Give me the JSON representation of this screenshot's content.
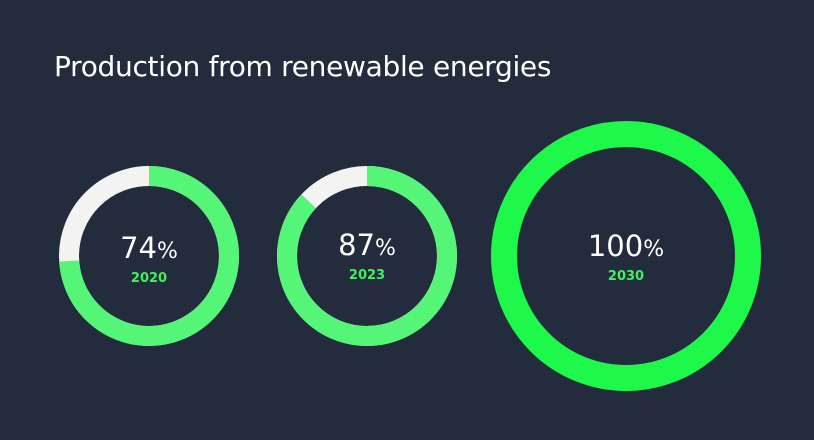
{
  "title": "Production from renewable energies",
  "colors": {
    "background": "#222c3c",
    "ring_fill_standard": "#55f577",
    "ring_fill_full": "#1ef84a",
    "ring_remainder": "#f3f3f1",
    "text": "#ffffff",
    "year_text": "#3df25e"
  },
  "chart_data": {
    "type": "donut",
    "title": "Production from renewable energies",
    "unit": "%",
    "categories": [
      "2020",
      "2023",
      "2030"
    ],
    "values": [
      74,
      87,
      100
    ],
    "items": [
      {
        "year": "2020",
        "value": 74,
        "value_label": "74",
        "unit_label": "%"
      },
      {
        "year": "2023",
        "value": 87,
        "value_label": "87",
        "unit_label": "%"
      },
      {
        "year": "2030",
        "value": 100,
        "value_label": "100",
        "unit_label": "%"
      }
    ]
  }
}
